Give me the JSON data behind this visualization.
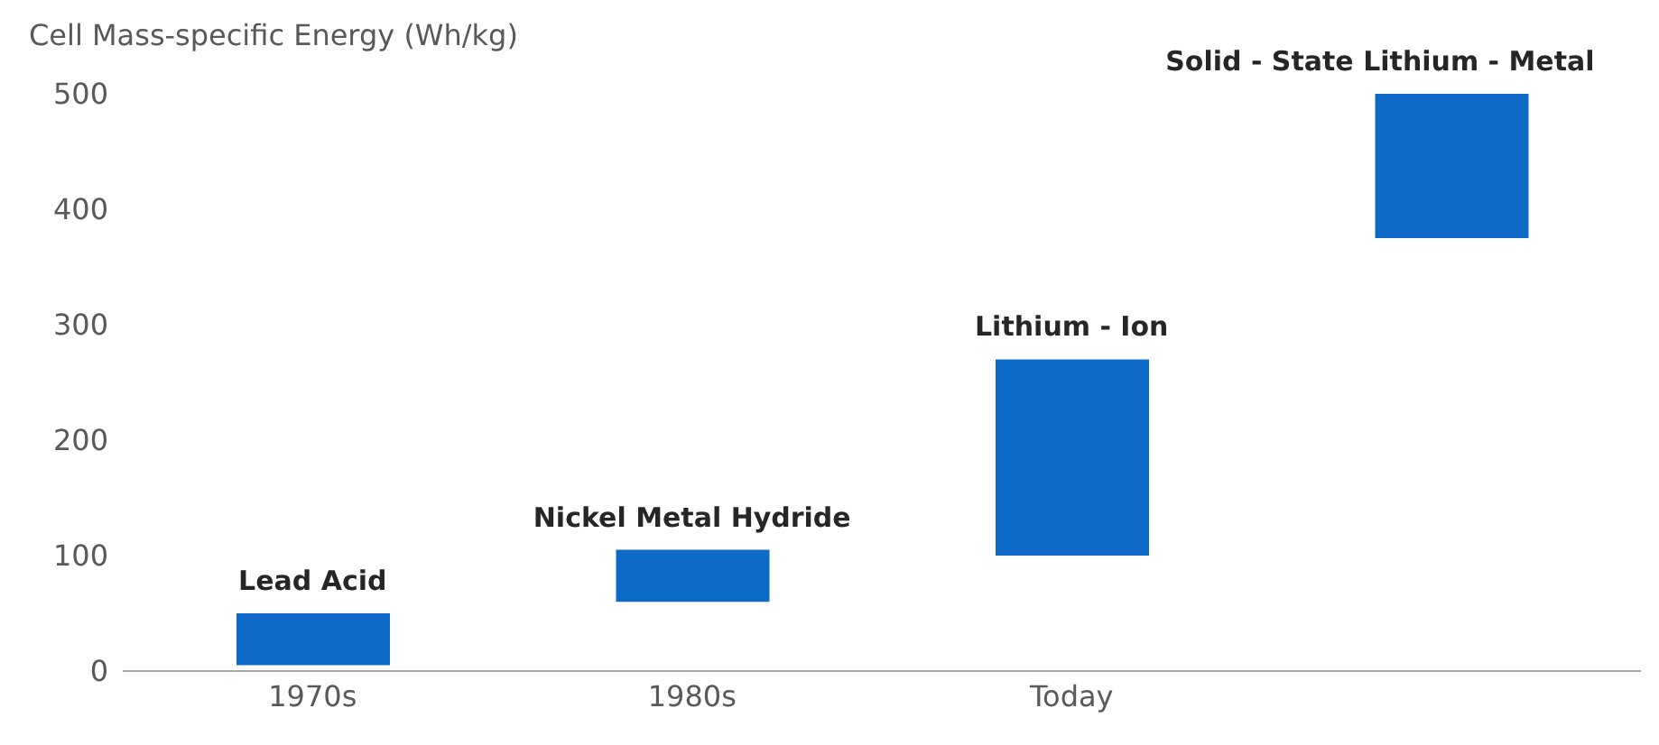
{
  "chart_data": {
    "type": "bar",
    "ylabel": "Cell Mass-specific Energy (Wh/kg)",
    "categories": [
      "1970s",
      "1980s",
      "Today",
      null
    ],
    "base": [
      5,
      60,
      100,
      375
    ],
    "values": [
      45,
      45,
      170,
      125
    ],
    "color": "#0e6ac7",
    "ylim": [
      0,
      500
    ],
    "yticks": [
      0,
      100,
      200,
      300,
      400,
      500
    ],
    "grid": false,
    "legend": false,
    "annotations": [
      {
        "text": "Lead Acid",
        "x": "1970s",
        "y": 50
      },
      {
        "text": "Nickel Metal Hydride",
        "x": "1980s",
        "y": 105
      },
      {
        "text": "Lithium - Ion",
        "x": "Today",
        "y": 270
      },
      {
        "text": "Solid - State Lithium - Metal",
        "y": 500
      }
    ]
  }
}
